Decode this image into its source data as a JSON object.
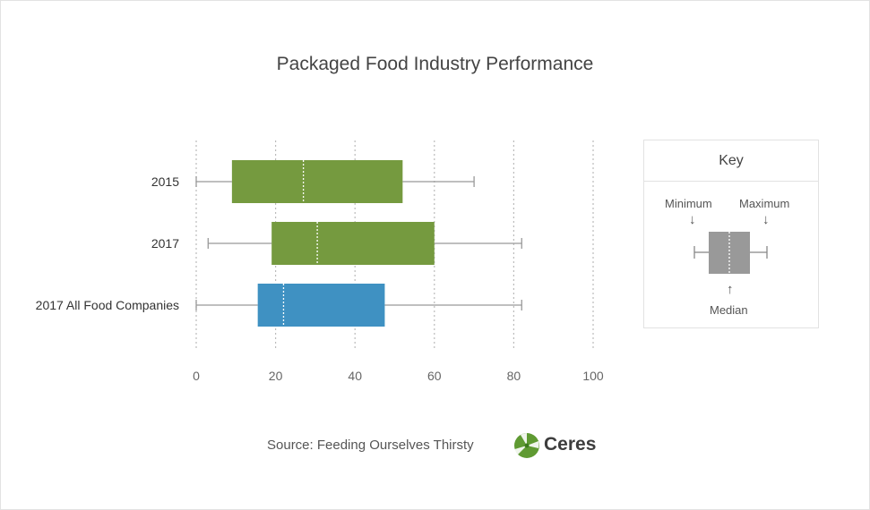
{
  "chart_data": {
    "type": "box",
    "title": "Packaged Food Industry Performance",
    "xlim": [
      0,
      100
    ],
    "x_ticks": [
      0,
      20,
      40,
      60,
      80,
      100
    ],
    "grid": "vertical dotted",
    "categories": [
      "2015",
      "2017",
      "2017 All Food Companies"
    ],
    "series": [
      {
        "category": "2015",
        "min": 0,
        "q1": 9,
        "median": 27,
        "q3": 52,
        "max": 70,
        "color": "#759a3f"
      },
      {
        "category": "2017",
        "min": 3,
        "q1": 19,
        "median": 30.5,
        "q3": 60,
        "max": 82,
        "color": "#759a3f"
      },
      {
        "category": "2017 All Food Companies",
        "min": 0,
        "q1": 15.5,
        "median": 22,
        "q3": 47.5,
        "max": 82,
        "color": "#3f91c2"
      }
    ],
    "legend_position": "right"
  },
  "key": {
    "title": "Key",
    "minimum": "Minimum",
    "maximum": "Maximum",
    "median": "Median",
    "arrow_down": "↓",
    "arrow_up": "↑",
    "color": "#999999"
  },
  "footer": {
    "source": "Source: Feeding Ourselves Thirsty",
    "logo_text": "Ceres"
  }
}
